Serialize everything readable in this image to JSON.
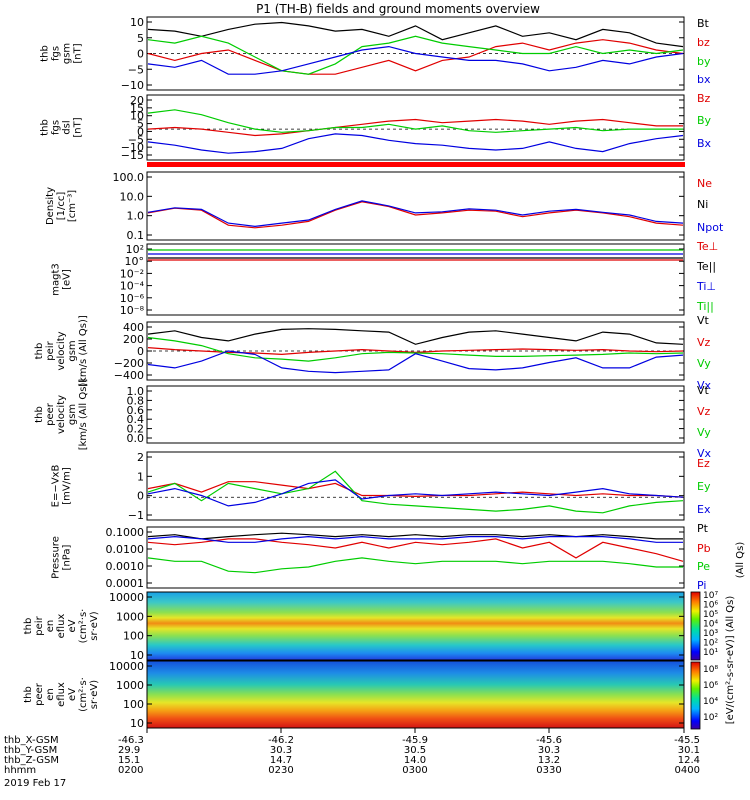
{
  "chart_data": {
    "title": "P1 (TH-B) fields and ground moments overview",
    "type": "line",
    "panels": [
      {
        "id": "fgs_gsm",
        "ylabel": [
          "thb",
          "fgs",
          "gsm",
          "[nT]"
        ],
        "yticks": [
          "10",
          "5",
          "0",
          "−5",
          "−10"
        ],
        "ylim": [
          -10,
          10
        ],
        "legend": [
          {
            "name": "Bt",
            "color": "#000000"
          },
          {
            "name": "bz",
            "color": "#e00000"
          },
          {
            "name": "by",
            "color": "#00cc00"
          },
          {
            "name": "bx",
            "color": "#0000e0"
          }
        ],
        "series": [
          {
            "name": "Bt",
            "color": "#000000",
            "values": [
              7,
              6.5,
              5,
              7,
              8.5,
              9,
              8,
              6.5,
              7,
              5,
              8,
              4,
              6,
              8,
              5,
              6,
              4,
              7,
              6,
              3,
              2
            ]
          },
          {
            "name": "bz",
            "color": "#e00000",
            "values": [
              0,
              -2,
              0,
              1,
              -2,
              -5,
              -6,
              -6,
              -4,
              -2,
              -5,
              -2,
              -1,
              2,
              3,
              1,
              3,
              4,
              3,
              1,
              0
            ]
          },
          {
            "name": "by",
            "color": "#00cc00",
            "values": [
              4,
              3,
              5,
              3,
              -1,
              -5,
              -6,
              -3,
              2,
              3,
              5,
              3,
              2,
              1,
              0,
              0,
              2,
              0,
              1,
              0,
              1
            ]
          },
          {
            "name": "bx",
            "color": "#0000e0",
            "values": [
              -3,
              -4,
              -2,
              -6,
              -6,
              -5,
              -3,
              -1,
              1,
              2,
              0,
              -1,
              -2,
              -2,
              -3,
              -5,
              -4,
              -2,
              -3,
              -1,
              0
            ]
          }
        ]
      },
      {
        "id": "fgs_dsl",
        "ylabel": [
          "thb",
          "fgs",
          "dsl",
          "[nT]"
        ],
        "yticks": [
          "20",
          "15",
          "10",
          "5",
          "0",
          "−5",
          "−10",
          "−15"
        ],
        "ylim": [
          -18,
          20
        ],
        "legend": [
          {
            "name": "Bz",
            "color": "#e00000"
          },
          {
            "name": "By",
            "color": "#00cc00"
          },
          {
            "name": "Bx",
            "color": "#0000e0"
          }
        ],
        "series": [
          {
            "name": "Bz",
            "color": "#e00000",
            "values": [
              0,
              1,
              0,
              -2,
              -4,
              -3,
              -1,
              1,
              3,
              5,
              6,
              4,
              5,
              6,
              5,
              3,
              5,
              6,
              4,
              2,
              2
            ]
          },
          {
            "name": "By",
            "color": "#00cc00",
            "values": [
              10,
              12,
              9,
              4,
              0,
              -2,
              -1,
              1,
              1,
              3,
              0,
              2,
              -1,
              -2,
              -1,
              0,
              1,
              -1,
              0,
              0,
              0
            ]
          },
          {
            "name": "Bx",
            "color": "#0000e0",
            "values": [
              -8,
              -10,
              -13,
              -15,
              -14,
              -12,
              -6,
              -3,
              -4,
              -7,
              -9,
              -10,
              -12,
              -13,
              -12,
              -8,
              -12,
              -14,
              -9,
              -6,
              -4
            ]
          }
        ]
      },
      {
        "id": "density",
        "ylabel": [
          "Density",
          "[1/cc]",
          "[cm⁻³]"
        ],
        "yticks": [
          "100.0",
          "10.0",
          "1.0",
          "0.1"
        ],
        "ylim": [
          0.1,
          100
        ],
        "yscale": "log",
        "legend": [
          {
            "name": "Ne",
            "color": "#e00000"
          },
          {
            "name": "Ni",
            "color": "#000000"
          },
          {
            "name": "Npot",
            "color": "#0000e0"
          }
        ],
        "series": [
          {
            "name": "Ne",
            "color": "#e00000",
            "values": [
              1.5,
              2.5,
              2,
              0.4,
              0.3,
              0.4,
              0.6,
              2,
              5,
              3,
              1.2,
              1.5,
              2,
              1.8,
              1,
              1.5,
              2,
              1.5,
              1,
              0.5,
              0.4
            ]
          },
          {
            "name": "Npot",
            "color": "#0000e0",
            "values": [
              1.6,
              2.6,
              2.2,
              0.5,
              0.35,
              0.5,
              0.7,
              2.2,
              5.5,
              3.2,
              1.5,
              1.7,
              2.3,
              2,
              1.2,
              1.8,
              2.2,
              1.6,
              1.2,
              0.6,
              0.5
            ]
          }
        ]
      },
      {
        "id": "temperature",
        "ylabel": [
          "magt3",
          "[eV]"
        ],
        "yticks": [
          "10²",
          "10°",
          "10⁻²",
          "10⁻⁴",
          "10⁻⁶",
          "10⁻⁸"
        ],
        "legend": [
          {
            "name": "Te⊥",
            "color": "#e00000"
          },
          {
            "name": "Te||",
            "color": "#000000"
          },
          {
            "name": "Ti⊥",
            "color": "#0000e0"
          },
          {
            "name": "Ti||",
            "color": "#00cc00"
          }
        ]
      },
      {
        "id": "peir_velocity",
        "ylabel": [
          "thb",
          "peir",
          "velocity",
          "gsm",
          "[km/s (All Qs)]"
        ],
        "yticks": [
          "400",
          "200",
          "0",
          "−200",
          "−400"
        ],
        "ylim": [
          -400,
          400
        ],
        "legend": [
          {
            "name": "Vt",
            "color": "#000000"
          },
          {
            "name": "Vz",
            "color": "#e00000"
          },
          {
            "name": "Vy",
            "color": "#00cc00"
          },
          {
            "name": "Vx",
            "color": "#0000e0"
          }
        ],
        "series": [
          {
            "name": "Vt",
            "color": "#000000",
            "values": [
              250,
              300,
              200,
              150,
              250,
              320,
              330,
              320,
              300,
              280,
              100,
              200,
              280,
              300,
              250,
              200,
              150,
              280,
              250,
              120,
              100
            ]
          },
          {
            "name": "Vz",
            "color": "#e00000",
            "values": [
              50,
              20,
              0,
              -20,
              -30,
              -50,
              -20,
              0,
              20,
              0,
              -20,
              0,
              10,
              20,
              30,
              20,
              10,
              20,
              0,
              -10,
              0
            ]
          },
          {
            "name": "Vy",
            "color": "#00cc00",
            "values": [
              200,
              150,
              80,
              -40,
              -100,
              -120,
              -150,
              -100,
              -40,
              -20,
              -30,
              -40,
              -60,
              -80,
              -80,
              -70,
              -60,
              -50,
              -30,
              -40,
              -30
            ]
          },
          {
            "name": "Vx",
            "color": "#0000e0",
            "values": [
              -200,
              -250,
              -150,
              0,
              -50,
              -250,
              -300,
              -320,
              -300,
              -280,
              -40,
              -150,
              -260,
              -280,
              -250,
              -170,
              -100,
              -250,
              -250,
              -90,
              -60
            ]
          }
        ]
      },
      {
        "id": "peer_velocity",
        "ylabel": [
          "thb",
          "peer",
          "velocity",
          "gsm",
          "[km/s (All Qs)]"
        ],
        "yticks": [
          "1.0",
          "0.8",
          "0.6",
          "0.4",
          "0.2",
          "0.0"
        ],
        "ylim": [
          0,
          1
        ],
        "legend": [
          {
            "name": "Vt",
            "color": "#000000"
          },
          {
            "name": "Vz",
            "color": "#e00000"
          },
          {
            "name": "Vy",
            "color": "#00cc00"
          },
          {
            "name": "Vx",
            "color": "#0000e0"
          }
        ]
      },
      {
        "id": "e_field",
        "ylabel": [
          "E=−VxB",
          "[mV/m]"
        ],
        "yticks": [
          "2",
          "1",
          "0",
          "−1"
        ],
        "ylim": [
          -1.2,
          2.5
        ],
        "legend": [
          {
            "name": "Ez",
            "color": "#e00000"
          },
          {
            "name": "Ey",
            "color": "#00cc00"
          },
          {
            "name": "Ex",
            "color": "#0000e0"
          }
        ],
        "series": [
          {
            "name": "Ez",
            "color": "#e00000",
            "values": [
              0.5,
              0.8,
              0.3,
              0.9,
              0.9,
              0.7,
              0.5,
              0.8,
              0.1,
              0.1,
              0.05,
              0.1,
              0.1,
              0.2,
              0.3,
              0.2,
              0.1,
              0.2,
              0.1,
              0.1,
              0
            ]
          },
          {
            "name": "Ey",
            "color": "#00cc00",
            "values": [
              0.3,
              0.8,
              -0.2,
              0.8,
              0.5,
              0.2,
              0.5,
              1.5,
              -0.2,
              -0.4,
              -0.5,
              -0.6,
              -0.7,
              -0.8,
              -0.7,
              -0.5,
              -0.8,
              -0.9,
              -0.5,
              -0.3,
              -0.2
            ]
          },
          {
            "name": "Ex",
            "color": "#0000e0",
            "values": [
              0.2,
              0.5,
              0.1,
              -0.5,
              -0.3,
              0.2,
              0.8,
              1,
              -0.1,
              0.1,
              0.2,
              0.1,
              0.2,
              0.3,
              0.2,
              0.1,
              0.3,
              0.5,
              0.2,
              0.1,
              0
            ]
          }
        ]
      },
      {
        "id": "pressure",
        "ylabel": [
          "Pressure",
          "[nPa]"
        ],
        "yticks": [
          "0.1000",
          "0.0100",
          "0.0010",
          "0.0001"
        ],
        "ylim": [
          0.0001,
          0.1
        ],
        "yscale": "log",
        "right_label": "(All Qs)",
        "legend": [
          {
            "name": "Pt",
            "color": "#000000"
          },
          {
            "name": "Pb",
            "color": "#e00000"
          },
          {
            "name": "Pe",
            "color": "#00cc00"
          },
          {
            "name": "Pi",
            "color": "#0000e0"
          }
        ],
        "series": [
          {
            "name": "Pt",
            "color": "#000000",
            "values": [
              0.04,
              0.05,
              0.03,
              0.04,
              0.05,
              0.06,
              0.05,
              0.04,
              0.05,
              0.04,
              0.05,
              0.04,
              0.05,
              0.05,
              0.04,
              0.05,
              0.04,
              0.05,
              0.04,
              0.03,
              0.03
            ]
          },
          {
            "name": "Pb",
            "color": "#e00000",
            "values": [
              0.02,
              0.015,
              0.02,
              0.03,
              0.03,
              0.02,
              0.015,
              0.01,
              0.02,
              0.01,
              0.02,
              0.015,
              0.02,
              0.03,
              0.01,
              0.02,
              0.003,
              0.02,
              0.01,
              0.005,
              0.002
            ]
          },
          {
            "name": "Pe",
            "color": "#00cc00",
            "values": [
              0.003,
              0.002,
              0.002,
              0.0006,
              0.0005,
              0.0008,
              0.001,
              0.002,
              0.003,
              0.002,
              0.0015,
              0.002,
              0.002,
              0.002,
              0.0015,
              0.002,
              0.002,
              0.002,
              0.0015,
              0.001,
              0.001
            ]
          },
          {
            "name": "Pi",
            "color": "#0000e0",
            "values": [
              0.03,
              0.04,
              0.03,
              0.02,
              0.02,
              0.03,
              0.04,
              0.03,
              0.04,
              0.03,
              0.03,
              0.03,
              0.04,
              0.04,
              0.03,
              0.04,
              0.04,
              0.04,
              0.03,
              0.02,
              0.02
            ]
          }
        ]
      },
      {
        "id": "peir_eflux",
        "type": "heatmap",
        "ylabel": [
          "thb",
          "peir",
          "en",
          "eflux",
          "eV",
          "(cm²·s·",
          "sr·eV)"
        ],
        "yticks": [
          "10000",
          "1000",
          "100",
          "10"
        ]
      },
      {
        "id": "peer_eflux",
        "type": "heatmap",
        "ylabel": [
          "thb",
          "peer",
          "en",
          "eflux",
          "eV",
          "(cm²·s·",
          "sr·eV)"
        ],
        "yticks": [
          "10000",
          "1000",
          "100",
          "10"
        ]
      }
    ],
    "colorbar": {
      "label": "[eV/(cm²-s-sr-eV)] (All Qs)",
      "ion_ticks": [
        "10⁷",
        "10⁶",
        "10⁵",
        "10⁴",
        "10³",
        "10²",
        "10¹"
      ],
      "electron_ticks": [
        "10⁸",
        "10⁶",
        "10⁴",
        "10²"
      ]
    },
    "x_axis": {
      "row_labels": [
        "thb_X-GSM",
        "thb_Y-GSM",
        "thb_Z-GSM",
        "hhmm"
      ],
      "ticks": [
        {
          "x": "-46.3",
          "y": "29.9",
          "z": "15.1",
          "t": "0200"
        },
        {
          "x": "-46.2",
          "y": "30.3",
          "z": "14.7",
          "t": "0230"
        },
        {
          "x": "-45.9",
          "y": "30.5",
          "z": "14.0",
          "t": "0300"
        },
        {
          "x": "-45.6",
          "y": "30.3",
          "z": "13.2",
          "t": "0330"
        },
        {
          "x": "-45.5",
          "y": "30.1",
          "z": "12.4",
          "t": "0400"
        }
      ],
      "date": "2019 Feb 17"
    }
  }
}
